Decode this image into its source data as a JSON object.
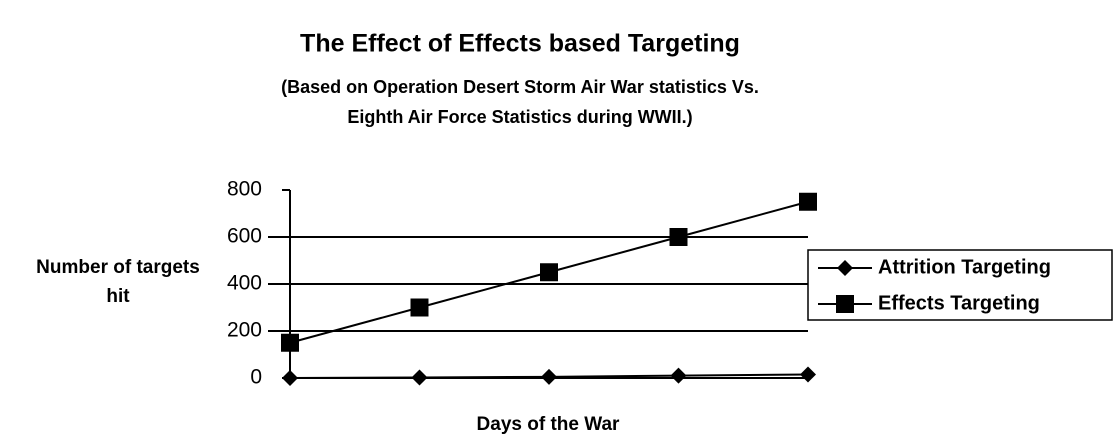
{
  "chart_data": {
    "type": "line",
    "title": "The Effect of Effects based Targeting",
    "subtitle": [
      "(Based on Operation Desert Storm Air War statistics Vs.",
      "Eighth Air Force Statistics during WWII.)"
    ],
    "xlabel": "Days of the War",
    "ylabel": [
      "Number of targets",
      "hit"
    ],
    "categories": [
      null,
      null,
      null,
      null,
      null
    ],
    "series": [
      {
        "name": "Attrition Targeting",
        "color": "#000000",
        "marker": "diamond",
        "values": [
          0,
          2,
          5,
          10,
          15
        ]
      },
      {
        "name": "Effects Targeting",
        "color": "#000000",
        "marker": "square",
        "values": [
          150,
          300,
          450,
          600,
          750
        ]
      }
    ],
    "ylim": [
      0,
      800
    ],
    "yticks": [
      0,
      200,
      400,
      600,
      800
    ],
    "grid": true,
    "legend": "right"
  }
}
